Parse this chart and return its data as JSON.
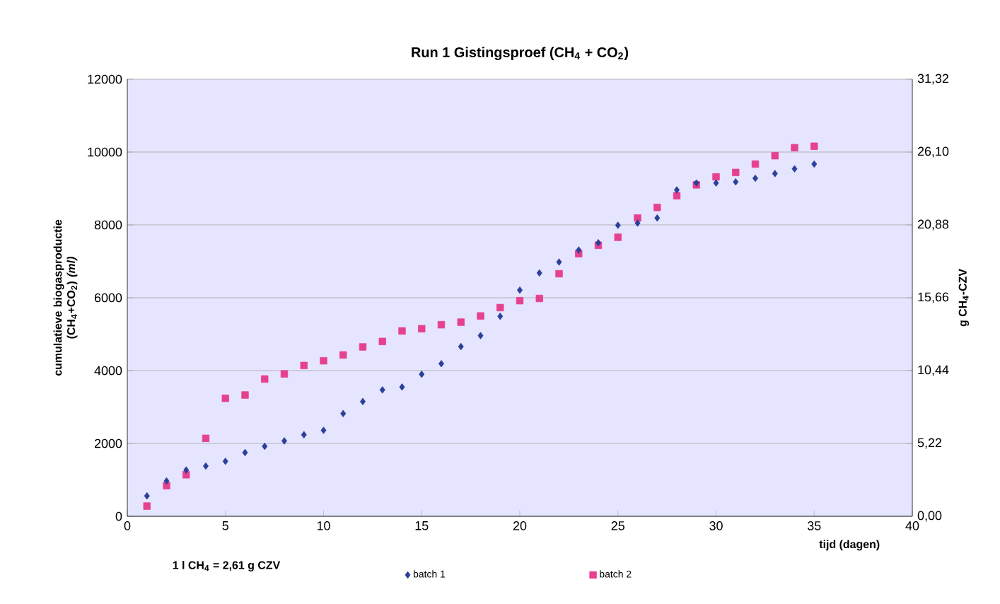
{
  "chart_data": {
    "type": "scatter",
    "title": "Run 1 Gistingsproef (CH$_{4}$ + CO$_{2}$)",
    "xlabel": "tijd (dagen)",
    "ylabel": "cumulatieve biogasproductie (CH$_{4}$+CO$_{2}$) *(ml)*",
    "y2label": "g CH$_{4}$-CZV",
    "annotations": [
      "1 l CH$_{4}$ = 2,61 g CZV"
    ],
    "x": [
      1,
      2,
      3,
      4,
      5,
      6,
      7,
      8,
      9,
      10,
      11,
      12,
      13,
      14,
      15,
      16,
      17,
      18,
      19,
      20,
      21,
      22,
      23,
      24,
      25,
      26,
      27,
      28,
      29,
      30,
      31,
      32,
      33,
      34,
      35
    ],
    "series": [
      {
        "name": "batch 1",
        "color": "#2b3f9b",
        "marker": "diamond",
        "values": [
          560,
          970,
          1270,
          1380,
          1510,
          1750,
          1920,
          2070,
          2240,
          2360,
          2820,
          3150,
          3470,
          3550,
          3900,
          4190,
          4660,
          4960,
          5490,
          6210,
          6680,
          6980,
          7310,
          7510,
          7990,
          8050,
          8190,
          8960,
          9150,
          9150,
          9180,
          9280,
          9410,
          9540,
          9670
        ]
      },
      {
        "name": "batch 2",
        "color": "#e6418f",
        "marker": "square",
        "values": [
          280,
          840,
          1140,
          2140,
          3240,
          3330,
          3770,
          3910,
          4140,
          4270,
          4430,
          4650,
          4800,
          5090,
          5150,
          5260,
          5330,
          5500,
          5730,
          5920,
          5980,
          6660,
          7210,
          7440,
          7660,
          8190,
          8480,
          8800,
          9100,
          9320,
          9440,
          9670,
          9900,
          10120,
          10160
        ]
      }
    ],
    "xlim": [
      0,
      40
    ],
    "xticks": [
      0,
      5,
      10,
      15,
      20,
      25,
      30,
      35,
      40
    ],
    "ylim": [
      0,
      12000
    ],
    "yticks": [
      0,
      2000,
      4000,
      6000,
      8000,
      10000,
      12000
    ],
    "y2lim": [
      0,
      31.32
    ],
    "y2ticks": [
      {
        "value": 0,
        "label": "0,00"
      },
      {
        "value": 5.22,
        "label": "5,22"
      },
      {
        "value": 10.44,
        "label": "10,44"
      },
      {
        "value": 15.66,
        "label": "15,66"
      },
      {
        "value": 20.88,
        "label": "20,88"
      },
      {
        "value": 26.1,
        "label": "26,10"
      },
      {
        "value": 31.32,
        "label": "31,32"
      }
    ],
    "grid": "y",
    "legend": "bottom"
  }
}
